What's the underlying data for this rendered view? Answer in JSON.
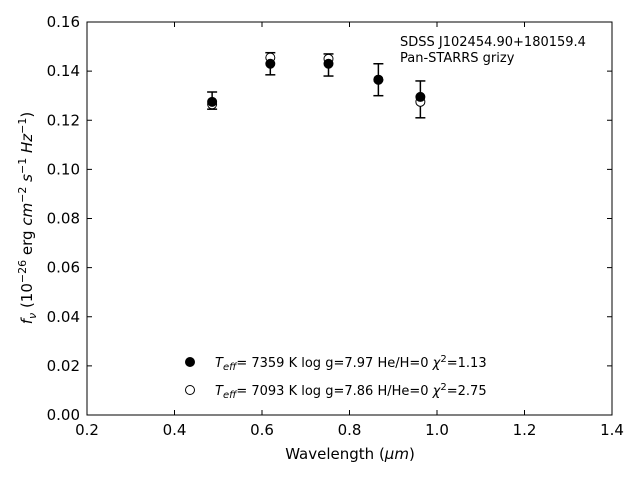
{
  "chart_data": {
    "type": "scatter",
    "xlabel_prefix": "Wavelength (",
    "xlabel_unit": "μm",
    "xlabel_suffix": ")",
    "ylabel": "f_ν (10^-26 erg cm^-2 s^-1 Hz^-1)",
    "xlim": [
      0.2,
      1.4
    ],
    "ylim": [
      0.0,
      0.16
    ],
    "xticks": [
      "0.2",
      "0.4",
      "0.6",
      "0.8",
      "1.0",
      "1.2",
      "1.4"
    ],
    "yticks": [
      "0.00",
      "0.02",
      "0.04",
      "0.06",
      "0.08",
      "0.10",
      "0.12",
      "0.14",
      "0.16"
    ],
    "grid": false,
    "annotation": [
      "SDSS J102454.90+180159.4",
      "Pan-STARRS grizy"
    ],
    "observed": {
      "x": [
        0.486,
        0.619,
        0.752,
        0.866,
        0.962
      ],
      "y": [
        0.128,
        0.143,
        0.1425,
        0.1365,
        0.1285
      ],
      "yerr": [
        0.0035,
        0.0045,
        0.0045,
        0.0065,
        0.0075
      ]
    },
    "series": [
      {
        "marker": "filled",
        "x": [
          0.486,
          0.619,
          0.752,
          0.866,
          0.962
        ],
        "y": [
          0.1275,
          0.143,
          0.143,
          0.1365,
          0.1295
        ],
        "legend": {
          "teff": "7359",
          "logg": "7.97",
          "comp": "He/H=0",
          "chi2": "1.13"
        }
      },
      {
        "marker": "open",
        "x": [
          0.486,
          0.619,
          0.752,
          0.866,
          0.962
        ],
        "y": [
          0.1265,
          0.1455,
          0.145,
          0.1365,
          0.1275
        ],
        "legend": {
          "teff": "7093",
          "logg": "7.86",
          "comp": "H/He=0",
          "chi2": "2.75"
        }
      }
    ],
    "legend_placement": "lower-center"
  }
}
